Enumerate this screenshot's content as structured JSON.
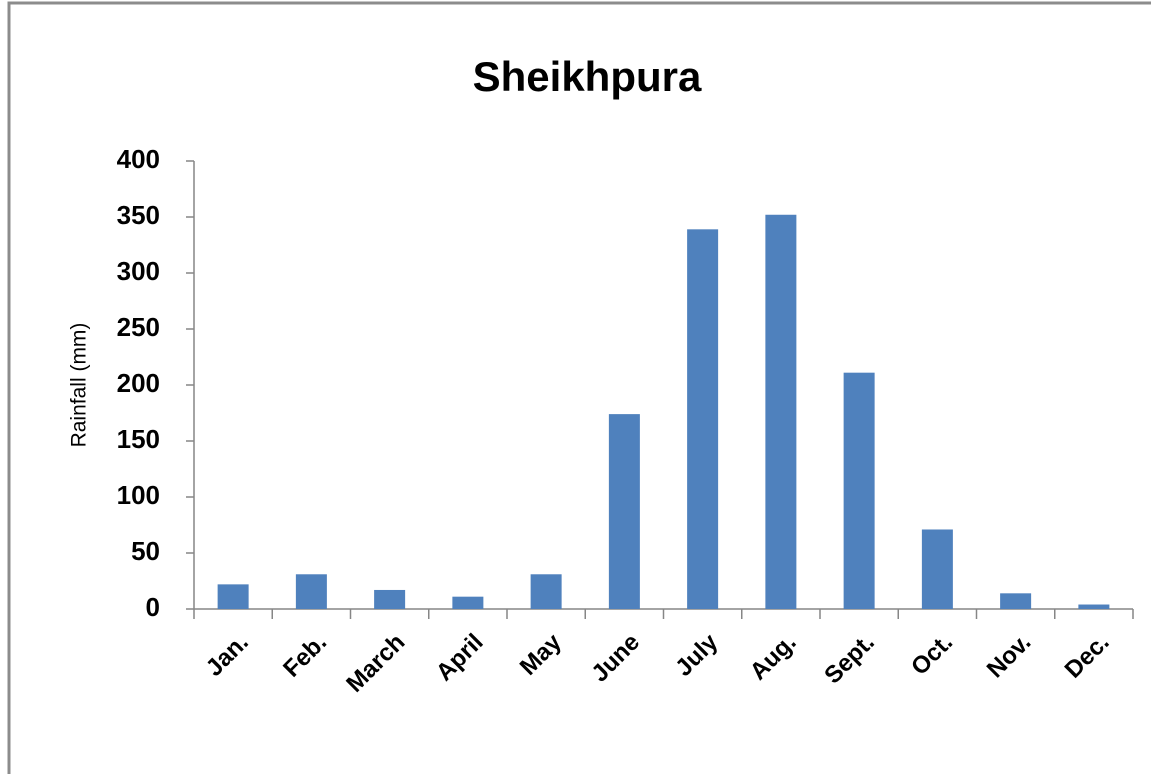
{
  "chart_data": {
    "type": "bar",
    "title": "Sheikhpura",
    "y_label": "Rainfall (mm)",
    "categories": [
      "Jan.",
      "Feb.",
      "March",
      "April",
      "May",
      "June",
      "July",
      "Aug.",
      "Sept.",
      "Oct.",
      "Nov.",
      "Dec."
    ],
    "values": [
      22,
      31,
      17,
      11,
      31,
      174,
      339,
      352,
      211,
      71,
      14,
      4
    ],
    "color": "#4f81bd",
    "ylim": [
      0,
      400
    ],
    "yticks": [
      0,
      50,
      100,
      150,
      200,
      250,
      300,
      350,
      400
    ],
    "grid": false
  }
}
